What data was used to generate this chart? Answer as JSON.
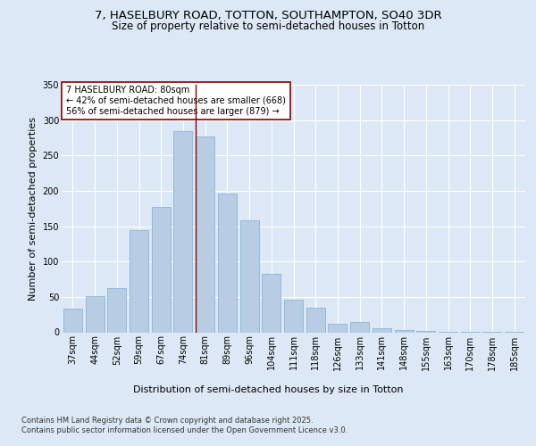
{
  "title": "7, HASELBURY ROAD, TOTTON, SOUTHAMPTON, SO40 3DR",
  "subtitle": "Size of property relative to semi-detached houses in Totton",
  "xlabel": "Distribution of semi-detached houses by size in Totton",
  "ylabel": "Number of semi-detached properties",
  "footnote": "Contains HM Land Registry data © Crown copyright and database right 2025.\nContains public sector information licensed under the Open Government Licence v3.0.",
  "bar_labels": [
    "37sqm",
    "44sqm",
    "52sqm",
    "59sqm",
    "67sqm",
    "74sqm",
    "81sqm",
    "89sqm",
    "96sqm",
    "104sqm",
    "111sqm",
    "118sqm",
    "126sqm",
    "133sqm",
    "141sqm",
    "148sqm",
    "155sqm",
    "163sqm",
    "170sqm",
    "178sqm",
    "185sqm"
  ],
  "bar_values": [
    33,
    51,
    62,
    145,
    177,
    285,
    277,
    196,
    158,
    83,
    46,
    35,
    12,
    14,
    6,
    3,
    2,
    1,
    1,
    1,
    1
  ],
  "bar_color": "#b8cce4",
  "bar_edge_color": "#7bafd4",
  "highlight_index": 6,
  "highlight_line_color": "#8b0000",
  "annotation_text": "7 HASELBURY ROAD: 80sqm\n← 42% of semi-detached houses are smaller (668)\n56% of semi-detached houses are larger (879) →",
  "annotation_box_color": "#ffffff",
  "annotation_box_edge_color": "#8b0000",
  "ylim": [
    0,
    350
  ],
  "yticks": [
    0,
    50,
    100,
    150,
    200,
    250,
    300,
    350
  ],
  "background_color": "#dce8f5",
  "plot_bg_color": "#dce8f5",
  "grid_color": "#ffffff",
  "title_fontsize": 9.5,
  "subtitle_fontsize": 8.5,
  "axis_label_fontsize": 8,
  "tick_fontsize": 7,
  "annotation_fontsize": 7,
  "footnote_fontsize": 6
}
